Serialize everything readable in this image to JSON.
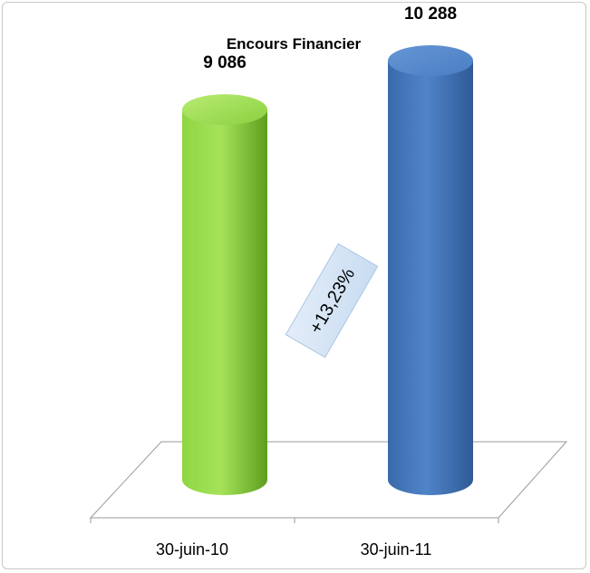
{
  "chart_data": {
    "type": "bar",
    "title": "Encours Financier",
    "categories": [
      "30-juin-10",
      "30-juin-11"
    ],
    "values": [
      9086,
      10288
    ],
    "value_labels": [
      "9 086",
      "10 288"
    ],
    "colors": [
      "#7dc42f",
      "#3f72b6"
    ],
    "annotation": "+13,23%",
    "xlabel": "",
    "ylabel": "",
    "ylim": [
      0,
      11000
    ],
    "grid": false,
    "legend": "none"
  }
}
